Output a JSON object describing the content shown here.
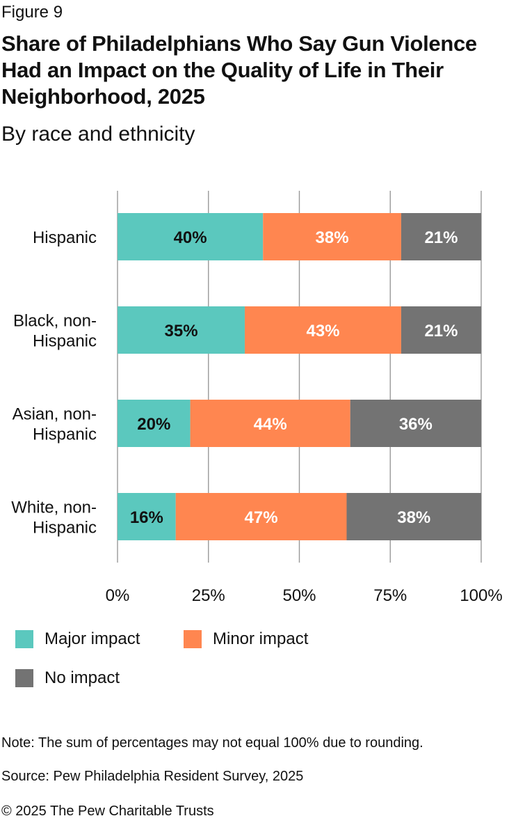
{
  "figure_label": "Figure 9",
  "title": "Share of Philadelphians Who Say Gun Violence Had an Impact on the Quality of Life in Their Neighborhood, 2025",
  "subtitle": "By race and ethnicity",
  "chart_data": {
    "type": "bar",
    "orientation": "horizontal",
    "stacked": true,
    "categories": [
      [
        "Hispanic"
      ],
      [
        "Black, non-",
        "Hispanic"
      ],
      [
        "Asian, non-",
        "Hispanic"
      ],
      [
        "White, non-",
        "Hispanic"
      ]
    ],
    "series": [
      {
        "name": "Major impact",
        "values": [
          40,
          35,
          20,
          16
        ],
        "labels": [
          "40%",
          "35%",
          "20%",
          "16%"
        ]
      },
      {
        "name": "Minor impact",
        "values": [
          38,
          43,
          44,
          47
        ],
        "labels": [
          "38%",
          "43%",
          "44%",
          "47%"
        ]
      },
      {
        "name": "No impact",
        "values": [
          21,
          21,
          36,
          38
        ],
        "labels": [
          "21%",
          "21%",
          "36%",
          "38%"
        ]
      }
    ],
    "xlim": [
      0,
      100
    ],
    "x_ticks": [
      0,
      25,
      50,
      75,
      100
    ],
    "x_tick_labels": [
      "0%",
      "25%",
      "50%",
      "75%",
      "100%"
    ],
    "grid": true,
    "legend_position": "bottom"
  },
  "colors": {
    "major": "#5BC8BE",
    "minor": "#FF8650",
    "none": "#737373",
    "grid": "#999999",
    "label_dark": "#111111",
    "label_light": "#ffffff"
  },
  "legend": [
    {
      "label": "Major impact",
      "color": "#5BC8BE"
    },
    {
      "label": "Minor impact",
      "color": "#FF8650"
    },
    {
      "label": "No impact",
      "color": "#737373"
    }
  ],
  "note": "Note: The sum of percentages may not equal 100% due to rounding.",
  "source": "Source: Pew Philadelphia Resident Survey, 2025",
  "copyright": "© 2025 The Pew Charitable Trusts"
}
